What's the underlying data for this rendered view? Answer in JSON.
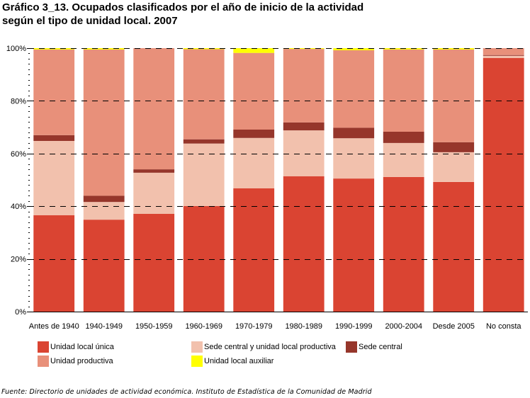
{
  "title_line1": "Gráfico 3_13. Ocupados clasificados por el año de inicio de la actividad",
  "title_line2": "según el tipo de unidad local. 2007",
  "source": "Fuente: Directorio de unidades de actividad económica. Instituto de Estadística de la Comunidad de Madrid",
  "chart_data": {
    "type": "bar",
    "stacked": true,
    "percent": true,
    "title": "Gráfico 3_13. Ocupados clasificados por el año de inicio de la actividad según el tipo de unidad local. 2007",
    "xlabel": "",
    "ylabel": "",
    "ylim": [
      0,
      100
    ],
    "yticks": [
      "0%",
      "20%",
      "40%",
      "60%",
      "80%",
      "100%"
    ],
    "ytick_values": [
      0,
      20,
      40,
      60,
      80,
      100
    ],
    "grid": true,
    "legend_position": "bottom",
    "categories": [
      "Antes de 1940",
      "1940-1949",
      "1950-1959",
      "1960-1969",
      "1970-1979",
      "1980-1989",
      "1990-1999",
      "2000-2004",
      "Desde 2005",
      "No consta"
    ],
    "series": [
      {
        "name": "Unidad local única",
        "color": "#DA4432",
        "values": [
          36.6,
          34.9,
          37.1,
          40.1,
          46.8,
          51.4,
          50.5,
          51.1,
          49.2,
          96.3
        ]
      },
      {
        "name": "Sede central y unidad local productiva",
        "color": "#F2C1AD",
        "values": [
          28.2,
          6.7,
          15.6,
          23.7,
          19.1,
          17.4,
          15.3,
          12.9,
          11.3,
          0.8
        ]
      },
      {
        "name": "Sede central",
        "color": "#96362B",
        "values": [
          2.2,
          2.4,
          1.3,
          1.6,
          3.2,
          3.0,
          4.0,
          4.3,
          3.8,
          0.3
        ]
      },
      {
        "name": "Unidad productiva",
        "color": "#E8907A",
        "values": [
          32.5,
          55.5,
          46.0,
          34.2,
          29.1,
          27.9,
          29.4,
          31.2,
          35.2,
          2.6
        ]
      },
      {
        "name": "Unidad local auxiliar",
        "color": "#FFFF00",
        "values": [
          0.5,
          0.5,
          0.0,
          0.4,
          1.8,
          0.3,
          0.8,
          0.5,
          0.5,
          0.0
        ]
      }
    ],
    "legend": [
      {
        "label": "Unidad local única",
        "series": 0
      },
      {
        "label": "Sede central y unidad local productiva",
        "series": 1
      },
      {
        "label": "Sede central",
        "series": 2
      },
      {
        "label": "Unidad productiva",
        "series": 3
      },
      {
        "label": "Unidad local auxiliar",
        "series": 4
      }
    ]
  }
}
